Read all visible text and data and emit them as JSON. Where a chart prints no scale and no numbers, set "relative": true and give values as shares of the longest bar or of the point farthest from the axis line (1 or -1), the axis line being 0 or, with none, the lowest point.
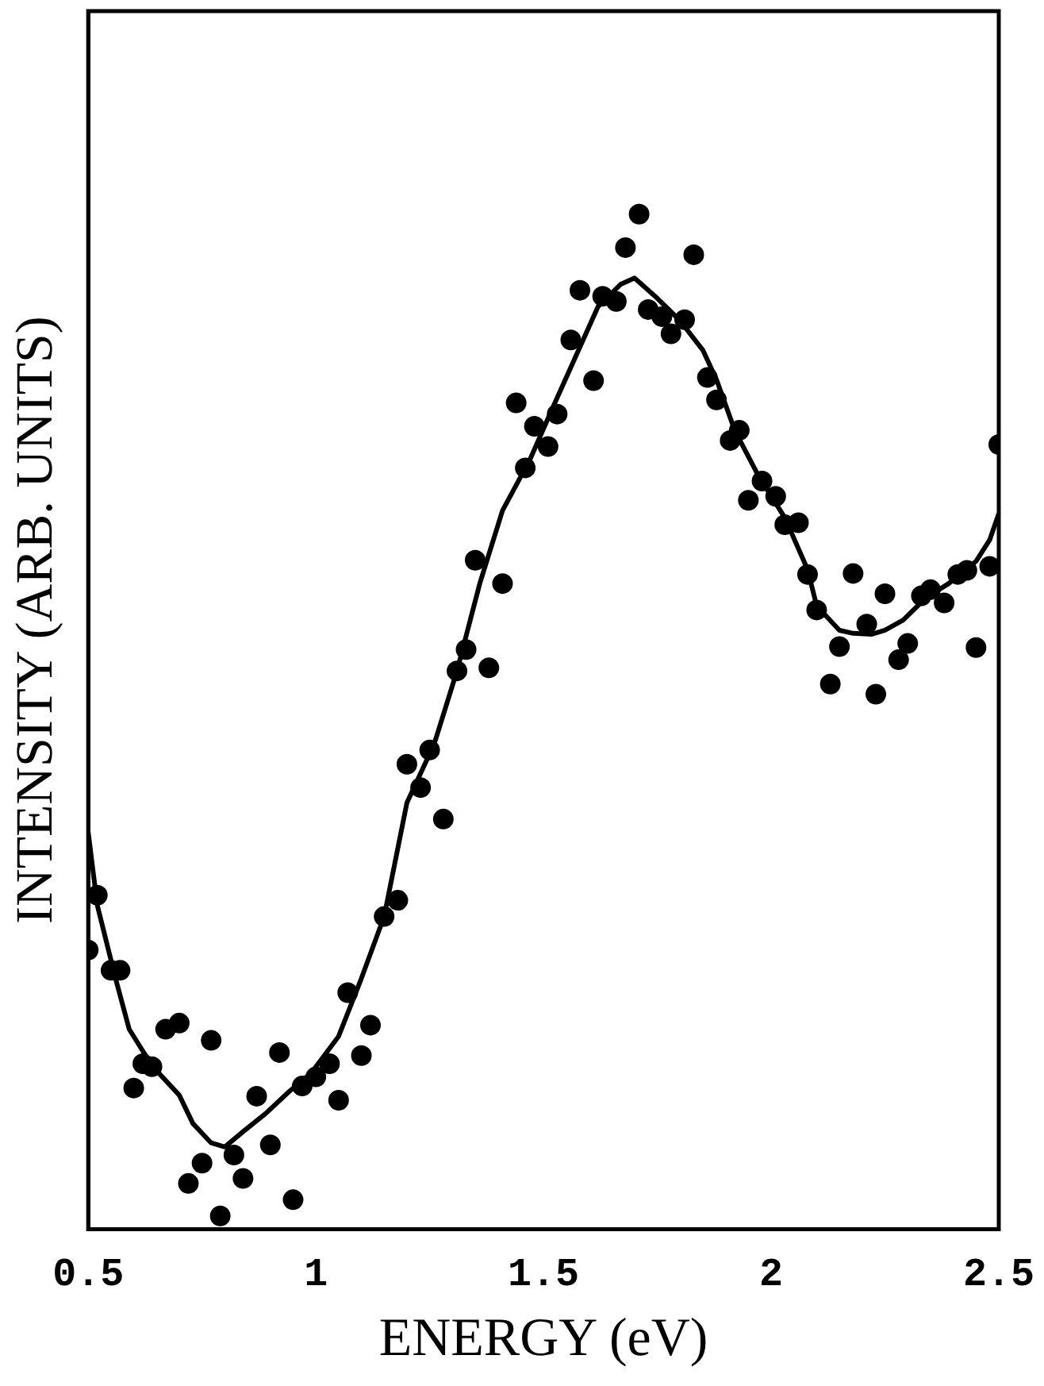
{
  "chart_data": {
    "type": "scatter",
    "relative": true,
    "xlabel": "ENERGY (eV)",
    "ylabel": "INTENSITY (ARB. UNITS)",
    "xlim": [
      0.5,
      2.5
    ],
    "xticks": [
      0.5,
      1,
      1.5,
      2,
      2.5
    ],
    "tick_labels": "x",
    "series": [
      {
        "type": "scatter",
        "color": "#000000",
        "marker": "circle",
        "x": [
          0.5,
          0.52,
          0.55,
          0.57,
          0.6,
          0.62,
          0.64,
          0.67,
          0.7,
          0.72,
          0.75,
          0.77,
          0.79,
          0.82,
          0.84,
          0.87,
          0.9,
          0.92,
          0.95,
          0.97,
          1.0,
          1.03,
          1.05,
          1.07,
          1.1,
          1.12,
          1.15,
          1.18,
          1.2,
          1.23,
          1.25,
          1.28,
          1.31,
          1.33,
          1.35,
          1.38,
          1.41,
          1.44,
          1.46,
          1.48,
          1.51,
          1.53,
          1.56,
          1.58,
          1.61,
          1.63,
          1.66,
          1.68,
          1.71,
          1.73,
          1.76,
          1.78,
          1.81,
          1.83,
          1.86,
          1.88,
          1.91,
          1.93,
          1.95,
          1.98,
          2.01,
          2.03,
          2.06,
          2.08,
          2.1,
          2.13,
          2.15,
          2.18,
          2.21,
          2.23,
          2.25,
          2.28,
          2.3,
          2.33,
          2.35,
          2.38,
          2.41,
          2.43,
          2.45,
          2.48,
          2.5
        ],
        "values": [
          0.275,
          0.329,
          0.255,
          0.255,
          0.139,
          0.163,
          0.16,
          0.197,
          0.203,
          0.045,
          0.065,
          0.186,
          0.013,
          0.073,
          0.05,
          0.131,
          0.083,
          0.174,
          0.029,
          0.141,
          0.15,
          0.163,
          0.127,
          0.233,
          0.171,
          0.201,
          0.308,
          0.324,
          0.458,
          0.435,
          0.472,
          0.404,
          0.55,
          0.571,
          0.659,
          0.553,
          0.636,
          0.814,
          0.75,
          0.791,
          0.771,
          0.803,
          0.876,
          0.925,
          0.836,
          0.919,
          0.914,
          0.967,
          1,
          0.906,
          0.899,
          0.882,
          0.896,
          0.96,
          0.839,
          0.817,
          0.777,
          0.787,
          0.718,
          0.737,
          0.722,
          0.694,
          0.696,
          0.645,
          0.61,
          0.537,
          0.574,
          0.646,
          0.596,
          0.527,
          0.626,
          0.561,
          0.577,
          0.624,
          0.63,
          0.617,
          0.645,
          0.649,
          0.573,
          0.653,
          0.773
        ]
      },
      {
        "type": "line",
        "color": "#000000",
        "marker": "none",
        "line_style": "solid",
        "x": [
          0.5,
          0.52,
          0.56,
          0.59,
          0.64,
          0.7,
          0.73,
          0.77,
          0.8,
          0.84,
          0.89,
          0.94,
          0.99,
          1.05,
          1.1,
          1.15,
          1.2,
          1.26,
          1.31,
          1.36,
          1.41,
          1.47,
          1.52,
          1.57,
          1.62,
          1.67,
          1.7,
          1.75,
          1.8,
          1.85,
          1.88,
          1.92,
          1.97,
          2.03,
          2.08,
          2.1,
          2.15,
          2.18,
          2.22,
          2.25,
          2.29,
          2.34,
          2.39,
          2.45,
          2.48,
          2.5
        ],
        "values": [
          0.391,
          0.319,
          0.247,
          0.197,
          0.161,
          0.132,
          0.104,
          0.085,
          0.081,
          0.096,
          0.114,
          0.135,
          0.154,
          0.19,
          0.247,
          0.308,
          0.42,
          0.478,
          0.55,
          0.636,
          0.708,
          0.758,
          0.809,
          0.859,
          0.909,
          0.931,
          0.937,
          0.917,
          0.895,
          0.866,
          0.837,
          0.787,
          0.744,
          0.701,
          0.65,
          0.614,
          0.59,
          0.587,
          0.586,
          0.59,
          0.6,
          0.622,
          0.636,
          0.658,
          0.679,
          0.705
        ]
      }
    ]
  }
}
